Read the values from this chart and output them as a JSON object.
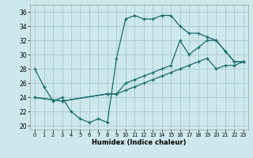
{
  "background_color": "#cde8ec",
  "grid_color": "#aacdd4",
  "line_color": "#1a6b6b",
  "xlabel": "Humidex (Indice chaleur)",
  "xlim": [
    -0.5,
    23.5
  ],
  "ylim": [
    19.5,
    37.0
  ],
  "xticks": [
    0,
    1,
    2,
    3,
    4,
    5,
    6,
    7,
    8,
    9,
    10,
    11,
    12,
    13,
    14,
    15,
    16,
    17,
    18,
    19,
    20,
    21,
    22,
    23
  ],
  "yticks": [
    20,
    22,
    24,
    26,
    28,
    30,
    32,
    34,
    36
  ],
  "line1_x": [
    0,
    1,
    2,
    3,
    4,
    5,
    6,
    7,
    8,
    9,
    10,
    11,
    12,
    13,
    14,
    15,
    16,
    17,
    18,
    19,
    20,
    21,
    22,
    23
  ],
  "line1_y": [
    28.0,
    25.5,
    23.5,
    24.0,
    22.0,
    21.0,
    20.5,
    21.0,
    20.5,
    29.5,
    35.0,
    35.5,
    35.0,
    35.0,
    35.5,
    35.5,
    34.0,
    33.0,
    33.0,
    32.5,
    32.0,
    30.5,
    29.0,
    29.0
  ],
  "line2_x": [
    0,
    3,
    8,
    9,
    10,
    11,
    12,
    13,
    14,
    15,
    16,
    17,
    18,
    19,
    20,
    21,
    22,
    23
  ],
  "line2_y": [
    24.0,
    23.5,
    24.5,
    24.5,
    26.0,
    26.5,
    27.0,
    27.5,
    28.0,
    28.5,
    32.0,
    30.0,
    31.0,
    32.0,
    32.0,
    30.5,
    29.0,
    29.0
  ],
  "line3_x": [
    0,
    3,
    8,
    9,
    10,
    11,
    12,
    13,
    14,
    15,
    16,
    17,
    18,
    19,
    20,
    21,
    22,
    23
  ],
  "line3_y": [
    24.0,
    23.5,
    24.5,
    24.5,
    25.0,
    25.5,
    26.0,
    26.5,
    27.0,
    27.5,
    28.0,
    28.5,
    29.0,
    29.5,
    28.0,
    28.5,
    28.5,
    29.0
  ]
}
